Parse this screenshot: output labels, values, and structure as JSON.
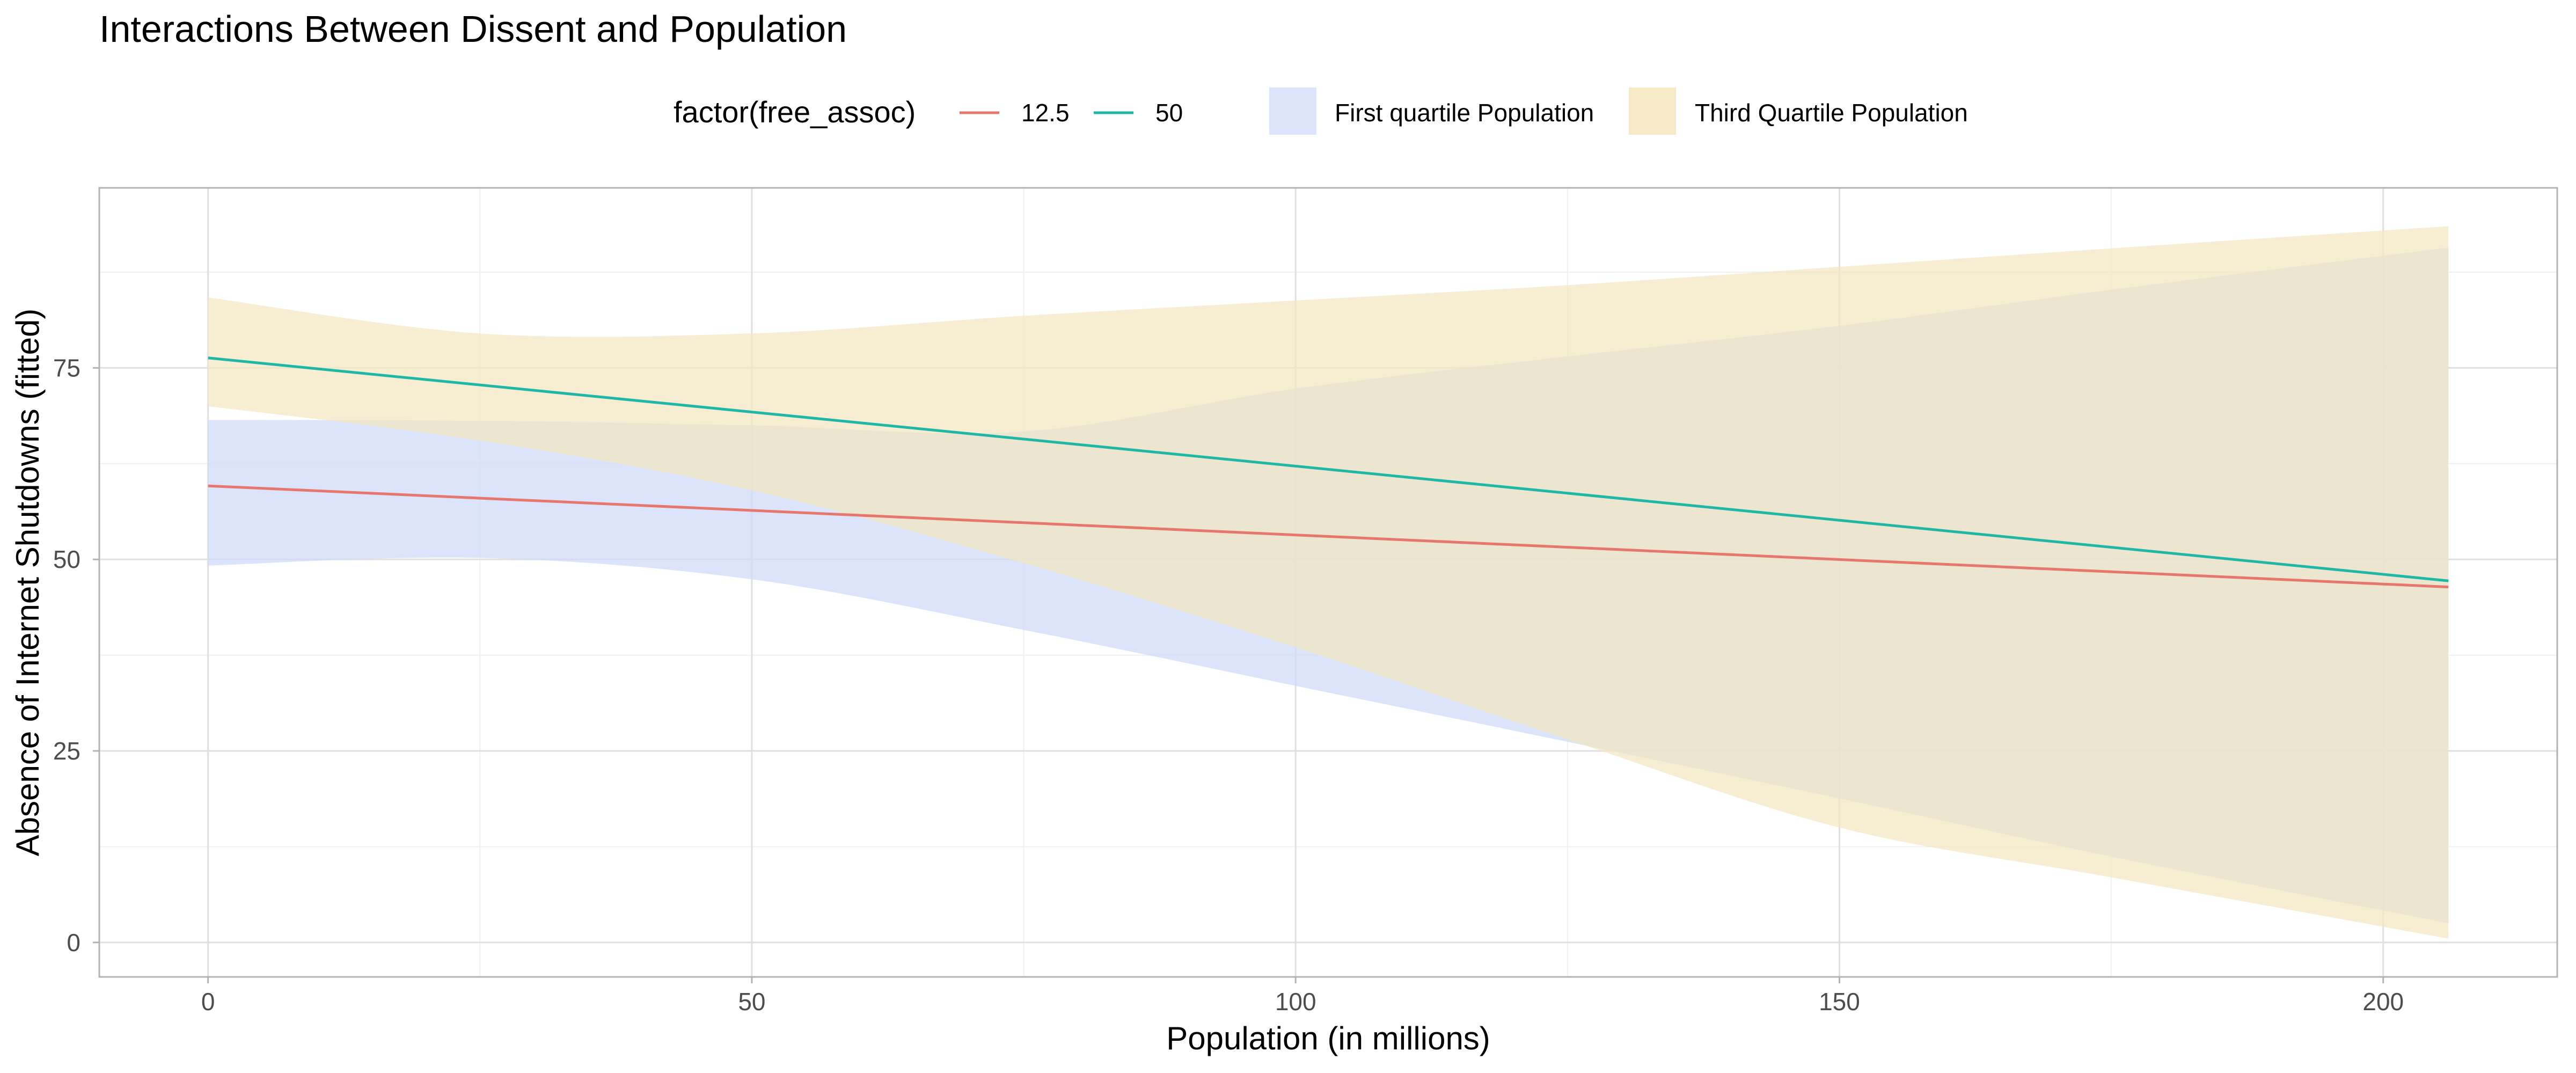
{
  "chart_data": {
    "type": "line",
    "title": "Interactions Between Dissent and Population",
    "xlabel": "Population (in millions)",
    "ylabel": "Absence of Internet Shutdowns (fitted)",
    "xlim": [
      -10,
      216
    ],
    "ylim": [
      -4.5,
      98.5
    ],
    "x_ticks": [
      0,
      50,
      100,
      150,
      200
    ],
    "y_ticks": [
      0,
      25,
      50,
      75
    ],
    "grid": true,
    "legend_position": "top",
    "legend": {
      "line_title": "factor(free_assoc)",
      "lines": [
        {
          "label": "12.5",
          "color": "#e7766d"
        },
        {
          "label": "50",
          "color": "#1fb7a6"
        }
      ],
      "fills": [
        {
          "label": "First quartile Population",
          "color": "#dce5fb"
        },
        {
          "label": "Third Quartile Population",
          "color": "#f5e9c8"
        }
      ]
    },
    "series": [
      {
        "label": "12.5",
        "color": "#e7766d",
        "x": [
          0,
          206
        ],
        "y": [
          59.6,
          46.4
        ]
      },
      {
        "label": "50",
        "color": "#1fb7a6",
        "x": [
          0,
          206
        ],
        "y": [
          76.3,
          47.2
        ]
      }
    ],
    "bands": [
      {
        "label": "First quartile Population",
        "color": "#cdd9fa",
        "x": [
          0,
          25,
          50,
          75,
          100,
          125,
          150,
          175,
          206
        ],
        "lower": [
          49.2,
          50.2,
          47.4,
          40.8,
          33.5,
          26.2,
          18.8,
          11.2,
          2.5
        ],
        "upper": [
          68.2,
          68.1,
          67.5,
          66.7,
          72.3,
          76.5,
          80.5,
          85.2,
          90.7
        ]
      },
      {
        "label": "Third Quartile Population",
        "color": "#f3e6c1",
        "x": [
          0,
          25,
          50,
          75,
          100,
          125,
          150,
          175,
          206
        ],
        "lower": [
          70.0,
          65.5,
          59.0,
          49.5,
          38.5,
          26.5,
          15.0,
          8.5,
          0.5
        ],
        "upper": [
          84.2,
          79.5,
          79.5,
          81.8,
          83.8,
          85.8,
          88.2,
          90.6,
          93.5
        ]
      }
    ]
  }
}
